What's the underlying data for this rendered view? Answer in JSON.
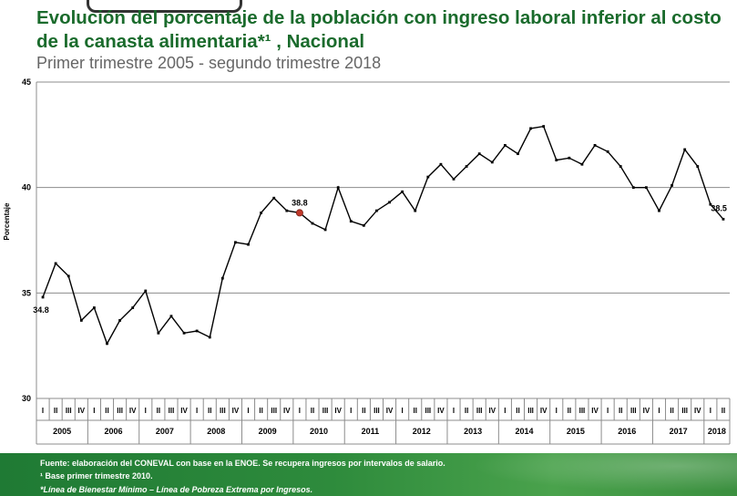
{
  "title": "Evolución del porcentaje de la población con ingreso laboral inferior al costo de la canasta alimentaria*¹ , Nacional",
  "subtitle": "Primer trimestre 2005 - segundo trimestre 2018",
  "footer": {
    "source": "Fuente: elaboración del CONEVAL con base en la ENOE. Se recupera ingresos por intervalos de salario.",
    "note1": "¹ Base primer trimestre 2010.",
    "note2": "*Línea de Bienestar Mínimo – Línea de Pobreza Extrema por Ingresos."
  },
  "chart_data": {
    "type": "line",
    "ylabel": "Porcentaje",
    "ylim": [
      30,
      45
    ],
    "yticks": [
      30,
      35,
      40,
      45
    ],
    "grid": true,
    "quarters": [
      "I",
      "II",
      "III",
      "IV",
      "I",
      "II",
      "III",
      "IV",
      "I",
      "II",
      "III",
      "IV",
      "I",
      "II",
      "III",
      "IV",
      "I",
      "II",
      "III",
      "IV",
      "I",
      "II",
      "III",
      "IV",
      "I",
      "II",
      "III",
      "IV",
      "I",
      "II",
      "III",
      "IV",
      "I",
      "II",
      "III",
      "IV",
      "I",
      "II",
      "III",
      "IV",
      "I",
      "II",
      "III",
      "IV",
      "I",
      "II",
      "III",
      "IV",
      "I",
      "II",
      "III",
      "IV",
      "I",
      "II"
    ],
    "years": [
      "2005",
      "2006",
      "2007",
      "2008",
      "2009",
      "2010",
      "2011",
      "2012",
      "2013",
      "2014",
      "2015",
      "2016",
      "2017",
      "2018"
    ],
    "values": [
      34.8,
      36.4,
      35.8,
      33.7,
      34.3,
      32.6,
      33.7,
      34.3,
      35.1,
      33.1,
      33.9,
      33.1,
      33.2,
      32.9,
      35.7,
      37.4,
      37.3,
      38.8,
      39.5,
      38.9,
      38.8,
      38.3,
      38.0,
      40.0,
      38.4,
      38.2,
      38.9,
      39.3,
      39.8,
      38.9,
      40.5,
      41.1,
      40.4,
      41.0,
      41.6,
      41.2,
      42.0,
      41.6,
      42.8,
      42.9,
      41.3,
      41.4,
      41.1,
      42.0,
      41.7,
      41.0,
      40.0,
      40.0,
      38.9,
      40.1,
      41.8,
      41.0,
      39.2,
      38.5
    ],
    "data_labels": [
      {
        "index": 0,
        "text": "34.8"
      },
      {
        "index": 20,
        "text": "38.8"
      },
      {
        "index": 53,
        "text": "38.5"
      }
    ],
    "highlight_index": 20,
    "line_color": "#000000",
    "highlight_color": "#c0392b"
  }
}
